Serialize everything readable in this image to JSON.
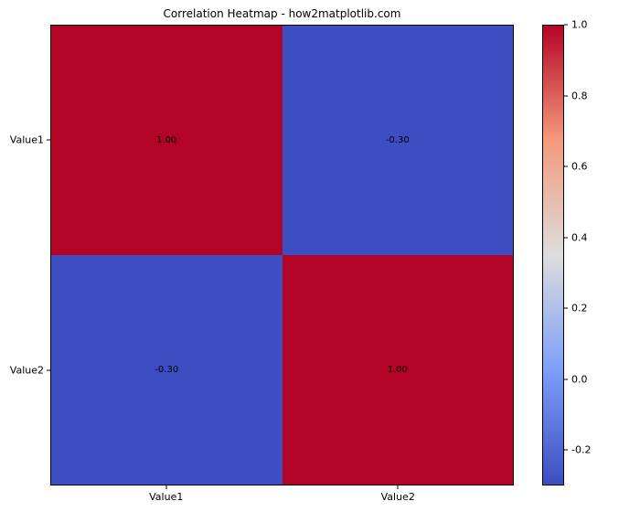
{
  "chart_data": {
    "type": "heatmap",
    "title": "Correlation Heatmap - how2matplotlib.com",
    "x_labels": [
      "Value1",
      "Value2"
    ],
    "y_labels": [
      "Value1",
      "Value2"
    ],
    "matrix": [
      [
        1.0,
        -0.3
      ],
      [
        -0.3,
        1.0
      ]
    ],
    "cell_labels": [
      [
        "1.00",
        "-0.30"
      ],
      [
        "-0.30",
        "1.00"
      ]
    ],
    "cell_colors": [
      [
        "#b40426",
        "#3c4ec2"
      ],
      [
        "#3c4ec2",
        "#b40426"
      ]
    ],
    "vmin": -0.3,
    "vmax": 1.0,
    "colormap": "coolwarm",
    "colorbar": {
      "position": "right",
      "tick_labels": [
        "1.0",
        "0.8",
        "0.6",
        "0.4",
        "0.2",
        "0.0",
        "-0.2"
      ],
      "gradient_stops": [
        {
          "at": 0,
          "color": "#b40426"
        },
        {
          "at": 25,
          "color": "#f49a7b"
        },
        {
          "at": 50,
          "color": "#dddddd"
        },
        {
          "at": 75,
          "color": "#7c9ff9"
        },
        {
          "at": 100,
          "color": "#3c4ec2"
        }
      ]
    },
    "text_color": "#000000",
    "background_color": "#ffffff",
    "grid": false,
    "legend": false
  }
}
